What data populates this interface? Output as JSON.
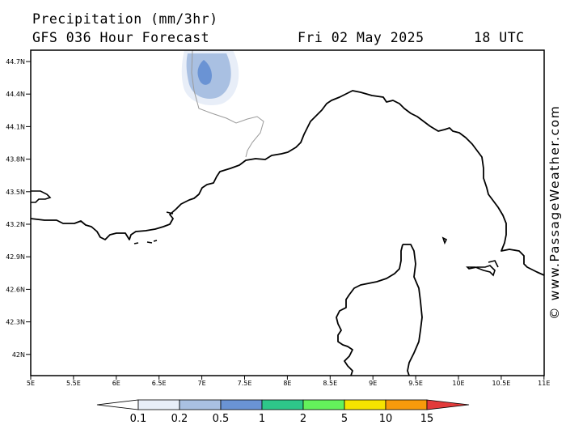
{
  "header": {
    "title": "Precipitation (mm/3hr)",
    "subtitle": "GFS 036 Hour Forecast",
    "date": "Fri 02 May 2025",
    "time": "18 UTC"
  },
  "credit": "© www.PassageWeather.com",
  "map": {
    "lat_labels": [
      "44.7N",
      "44.4N",
      "44.1N",
      "43.8N",
      "43.5N",
      "43.2N",
      "42.9N",
      "42.6N",
      "42.3N",
      "42N"
    ],
    "lon_labels": [
      "5E",
      "5.5E",
      "6E",
      "6.5E",
      "7E",
      "7.5E",
      "8E",
      "8.5E",
      "9E",
      "9.5E",
      "10E",
      "10.5E",
      "11E"
    ]
  },
  "legend": {
    "labels": [
      "0.1",
      "0.2",
      "0.5",
      "1",
      "2",
      "5",
      "10",
      "15"
    ],
    "colors": [
      "#ffffff",
      "#e8eef8",
      "#a9c0e2",
      "#6a93d4",
      "#2ec78a",
      "#64f25b",
      "#f6e400",
      "#f79a0b",
      "#e23a3a"
    ]
  }
}
